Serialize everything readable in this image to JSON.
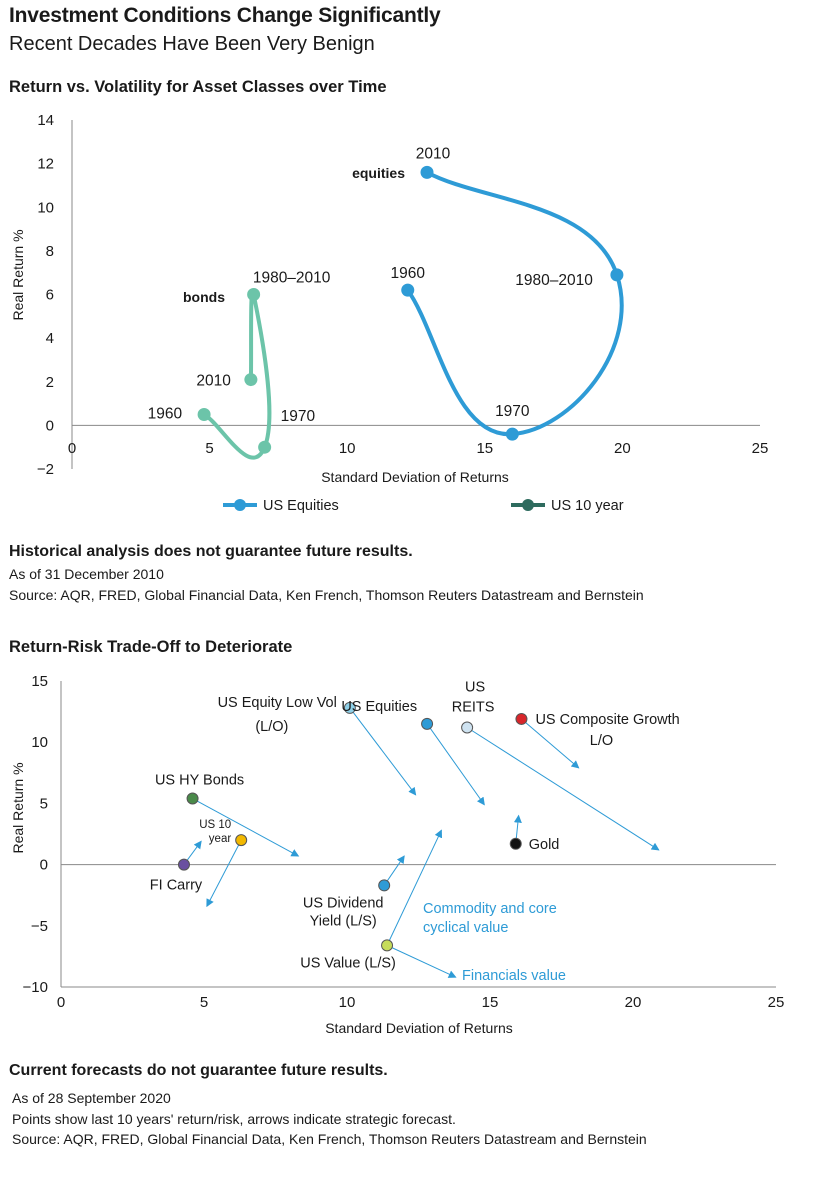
{
  "header": {
    "title": "Investment Conditions Change Significantly",
    "subtitle": "Recent Decades Have Been Very Benign"
  },
  "chart1": {
    "section_title": "Return vs. Volatility for Asset Classes over Time",
    "footnote_bold": "Historical analysis does not guarantee future results.",
    "notes": [
      "As of 31 December 2010",
      "Source: AQR, FRED, Global Financial Data, Ken French, Thomson Reuters Datastream and Bernstein"
    ]
  },
  "chart2": {
    "section_title": "Return-Risk Trade-Off to Deteriorate",
    "footnote_bold": "Current forecasts do not guarantee future results.",
    "notes": [
      "As of 28 September 2020",
      "Points show last 10 years' return/risk, arrows indicate strategic forecast.",
      "Source: AQR, FRED, Global Financial Data, Ken French, Thomson Reuters Datastream and Bernstein"
    ]
  },
  "colors": {
    "equities": "#2e9bd6",
    "bonds": "#6cc4a9",
    "bonds_legend": "#2e6b5e",
    "arrow": "#2e9bd6",
    "annotation": "#2e9bd6",
    "axis": "#888888"
  },
  "chart_data": [
    {
      "type": "scatter",
      "xlabel": "Standard Deviation of Returns",
      "ylabel": "Real Return %",
      "xlim": [
        0,
        25
      ],
      "ylim": [
        -2,
        14
      ],
      "xticks": [
        "0",
        "5",
        "10",
        "15",
        "20",
        "25"
      ],
      "yticks": [
        "−2",
        "0",
        "2",
        "4",
        "6",
        "8",
        "10",
        "12",
        "14"
      ],
      "legend": [
        "US Equities",
        "US 10 year"
      ],
      "legend_position": "bottom",
      "series": [
        {
          "name": "US Equities",
          "group_label": "equities",
          "points": [
            {
              "label": "1960",
              "x": 12.2,
              "y": 6.2
            },
            {
              "label": "1970",
              "x": 16.0,
              "y": -0.4
            },
            {
              "label": "1980–2010",
              "x": 19.8,
              "y": 6.9
            },
            {
              "label": "2010",
              "x": 12.9,
              "y": 11.6
            }
          ]
        },
        {
          "name": "US 10 year",
          "group_label": "bonds",
          "points": [
            {
              "label": "1960",
              "x": 4.8,
              "y": 0.5
            },
            {
              "label": "1970",
              "x": 7.0,
              "y": -1.0
            },
            {
              "label": "1980–2010",
              "x": 6.6,
              "y": 6.0
            },
            {
              "label": "2010",
              "x": 6.5,
              "y": 2.1
            }
          ]
        }
      ]
    },
    {
      "type": "scatter",
      "xlabel": "Standard Deviation of Returns",
      "ylabel": "Real Return %",
      "xlim": [
        0,
        25
      ],
      "ylim": [
        -10,
        15
      ],
      "xticks": [
        "0",
        "5",
        "10",
        "15",
        "20",
        "25"
      ],
      "yticks": [
        "15",
        "10",
        "5",
        "0",
        "−5",
        "−10"
      ],
      "points": [
        {
          "label": "US Equity Low Vol (L/O)",
          "x": 10.1,
          "y": 12.8,
          "color": "#8fd0e8",
          "arrow_to": [
            12.4,
            5.7
          ]
        },
        {
          "label": "US Equities",
          "x": 12.8,
          "y": 11.5,
          "color": "#2e9bd6",
          "arrow_to": [
            14.8,
            4.9
          ]
        },
        {
          "label": "US REITS",
          "x": 14.2,
          "y": 11.2,
          "color": "#cfe3f1",
          "arrow_to": [
            20.9,
            1.2
          ]
        },
        {
          "label": "US Composite Growth L/O",
          "x": 16.1,
          "y": 11.9,
          "color": "#d8262b",
          "arrow_to": [
            18.1,
            7.9
          ]
        },
        {
          "label": "US HY Bonds",
          "x": 4.6,
          "y": 5.4,
          "color": "#4a8a4a",
          "arrow_to": [
            8.3,
            0.7
          ]
        },
        {
          "label": "US 10 year",
          "x": 6.3,
          "y": 2.0,
          "color": "#f2b800",
          "arrow_to": [
            5.1,
            -3.4
          ]
        },
        {
          "label": "FI Carry",
          "x": 4.3,
          "y": 0.0,
          "color": "#6a4fa0",
          "arrow_to": [
            4.9,
            1.9
          ]
        },
        {
          "label": "Gold",
          "x": 15.9,
          "y": 1.7,
          "color": "#111111",
          "arrow_to": [
            16.0,
            4.0
          ]
        },
        {
          "label": "US Dividend Yield (L/S)",
          "x": 11.3,
          "y": -1.7,
          "color": "#2e9bd6",
          "arrow_to": [
            12.0,
            0.7
          ]
        },
        {
          "label": "US Value (L/S)",
          "x": 11.4,
          "y": -6.6,
          "color": "#c6dc5a",
          "arrow_to": [
            13.3,
            2.8
          ]
        }
      ],
      "extra_arrows": [
        {
          "label": "Financials value",
          "from": [
            11.4,
            -6.6
          ],
          "to": [
            13.8,
            -9.2
          ]
        }
      ],
      "annotations": [
        "Commodity and core cyclical value",
        "Financials value"
      ]
    }
  ]
}
